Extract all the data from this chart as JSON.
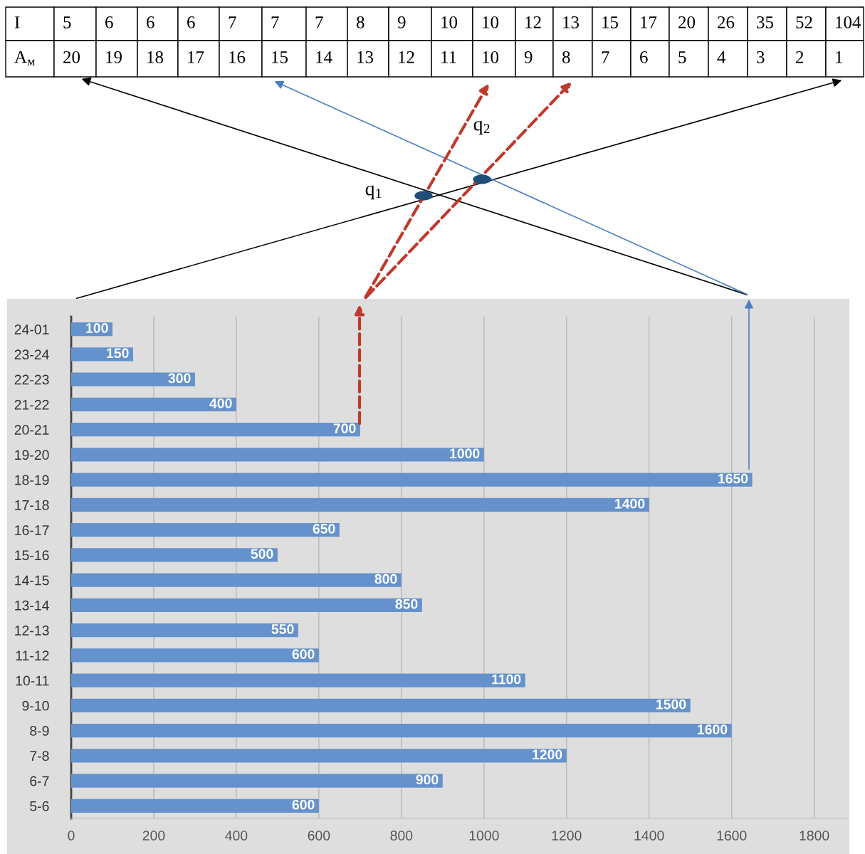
{
  "chart_data": {
    "type": "bar",
    "orientation": "horizontal",
    "categories": [
      "24-01",
      "23-24",
      "22-23",
      "21-22",
      "20-21",
      "19-20",
      "18-19",
      "17-18",
      "16-17",
      "15-16",
      "14-15",
      "13-14",
      "12-13",
      "11-12",
      "10-11",
      "9-10",
      "8-9",
      "7-8",
      "6-7",
      "5-6"
    ],
    "values": [
      100,
      150,
      300,
      400,
      700,
      1000,
      1650,
      1400,
      650,
      500,
      800,
      850,
      550,
      600,
      1100,
      1500,
      1600,
      1200,
      900,
      600
    ],
    "color": "#6592cc",
    "xlim": [
      0,
      1880
    ],
    "xticks": [
      0,
      200,
      400,
      600,
      800,
      1000,
      1200,
      1400,
      1600,
      1800
    ],
    "grid": "x",
    "data_labels": true,
    "annotations": [
      "I",
      "5",
      "6",
      "6",
      "6",
      "7",
      "7",
      "7",
      "8",
      "9",
      "10",
      "10",
      "12",
      "13",
      "15",
      "17",
      "20",
      "26",
      "35",
      "52",
      "104",
      "A$_{м}$",
      "20",
      "19",
      "18",
      "17",
      "16",
      "15",
      "14",
      "13",
      "12",
      "11",
      "10",
      "9",
      "8",
      "7",
      "6",
      "5",
      "4",
      "3",
      "2",
      "1",
      "q$_{1}$",
      "q$_{2}$"
    ]
  }
}
